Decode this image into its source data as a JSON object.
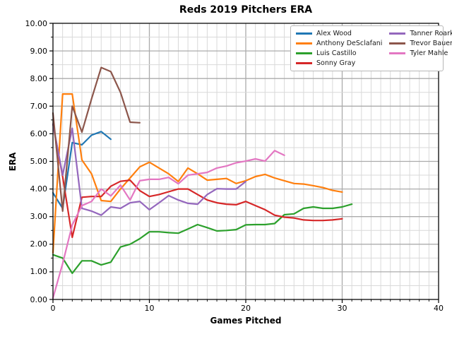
{
  "chart_data": {
    "type": "line",
    "title": "Reds 2019 Pitchers ERA",
    "xlabel": "Games Pitched",
    "ylabel": "ERA",
    "xlim": [
      0,
      40
    ],
    "ylim": [
      0,
      10
    ],
    "x_tick_values": [
      0,
      10,
      20,
      30,
      40
    ],
    "x_tick_labels": [
      "0",
      "10",
      "20",
      "30",
      "40"
    ],
    "y_tick_values": [
      0,
      1,
      2,
      3,
      4,
      5,
      6,
      7,
      8,
      9,
      10
    ],
    "y_tick_labels": [
      "0.00",
      "1.00",
      "2.00",
      "3.00",
      "4.00",
      "5.00",
      "6.00",
      "7.00",
      "8.00",
      "9.00",
      "10.00"
    ],
    "grid": {
      "minor_x_step": 1,
      "minor_y_step": 0.5,
      "minor_color": "#d9d9d9",
      "major_color": "#ababab",
      "on": true
    },
    "legend_position": "upper-right",
    "legend_columns": 2,
    "series": [
      {
        "name": "Alex Wood",
        "color": "#1f77b4",
        "values": [
          3.86,
          3.3,
          5.68,
          5.6,
          5.95,
          6.08,
          5.8
        ]
      },
      {
        "name": "Anthony DeSclafani",
        "color": "#ff7f0e",
        "values": [
          1.69,
          7.44,
          7.44,
          5.05,
          4.55,
          3.58,
          3.55,
          4.0,
          4.4,
          4.8,
          4.97,
          4.76,
          4.55,
          4.27,
          4.76,
          4.55,
          4.32,
          4.35,
          4.38,
          4.2,
          4.3,
          4.45,
          4.53,
          4.4,
          4.3,
          4.2,
          4.18,
          4.12,
          4.05,
          3.95,
          3.89
        ]
      },
      {
        "name": "Luis Castillo",
        "color": "#2ca02c",
        "values": [
          1.62,
          1.5,
          0.95,
          1.4,
          1.4,
          1.25,
          1.35,
          1.9,
          2.0,
          2.2,
          2.45,
          2.45,
          2.42,
          2.4,
          2.55,
          2.71,
          2.6,
          2.48,
          2.5,
          2.53,
          2.7,
          2.71,
          2.71,
          2.75,
          3.07,
          3.1,
          3.3,
          3.35,
          3.3,
          3.3,
          3.35,
          3.45
        ]
      },
      {
        "name": "Sonny Gray",
        "color": "#d62728",
        "values": [
          6.35,
          4.45,
          2.25,
          3.7,
          3.73,
          3.73,
          4.1,
          4.28,
          4.32,
          3.94,
          3.73,
          3.8,
          3.9,
          4.0,
          4.0,
          3.8,
          3.6,
          3.5,
          3.45,
          3.43,
          3.55,
          3.4,
          3.25,
          3.05,
          2.98,
          2.95,
          2.88,
          2.86,
          2.86,
          2.88,
          2.92
        ]
      },
      {
        "name": "Tanner Roark",
        "color": "#9467bd",
        "values": [
          6.35,
          4.5,
          6.2,
          3.3,
          3.2,
          3.05,
          3.35,
          3.3,
          3.5,
          3.55,
          3.25,
          3.5,
          3.76,
          3.6,
          3.48,
          3.45,
          3.8,
          4.01,
          4.0,
          4.0,
          4.27
        ]
      },
      {
        "name": "Trevor Bauer",
        "color": "#8c564b",
        "values": [
          6.75,
          3.2,
          7.0,
          6.06,
          7.26,
          8.4,
          8.25,
          7.5,
          6.42,
          6.4
        ]
      },
      {
        "name": "Tyler Mahle",
        "color": "#e377c2",
        "values": [
          0.05,
          1.3,
          2.7,
          3.4,
          3.55,
          4.0,
          3.75,
          4.14,
          3.6,
          4.3,
          4.35,
          4.35,
          4.42,
          4.19,
          4.5,
          4.55,
          4.6,
          4.76,
          4.83,
          4.95,
          5.01,
          5.09,
          5.01,
          5.39,
          5.22
        ]
      }
    ]
  }
}
